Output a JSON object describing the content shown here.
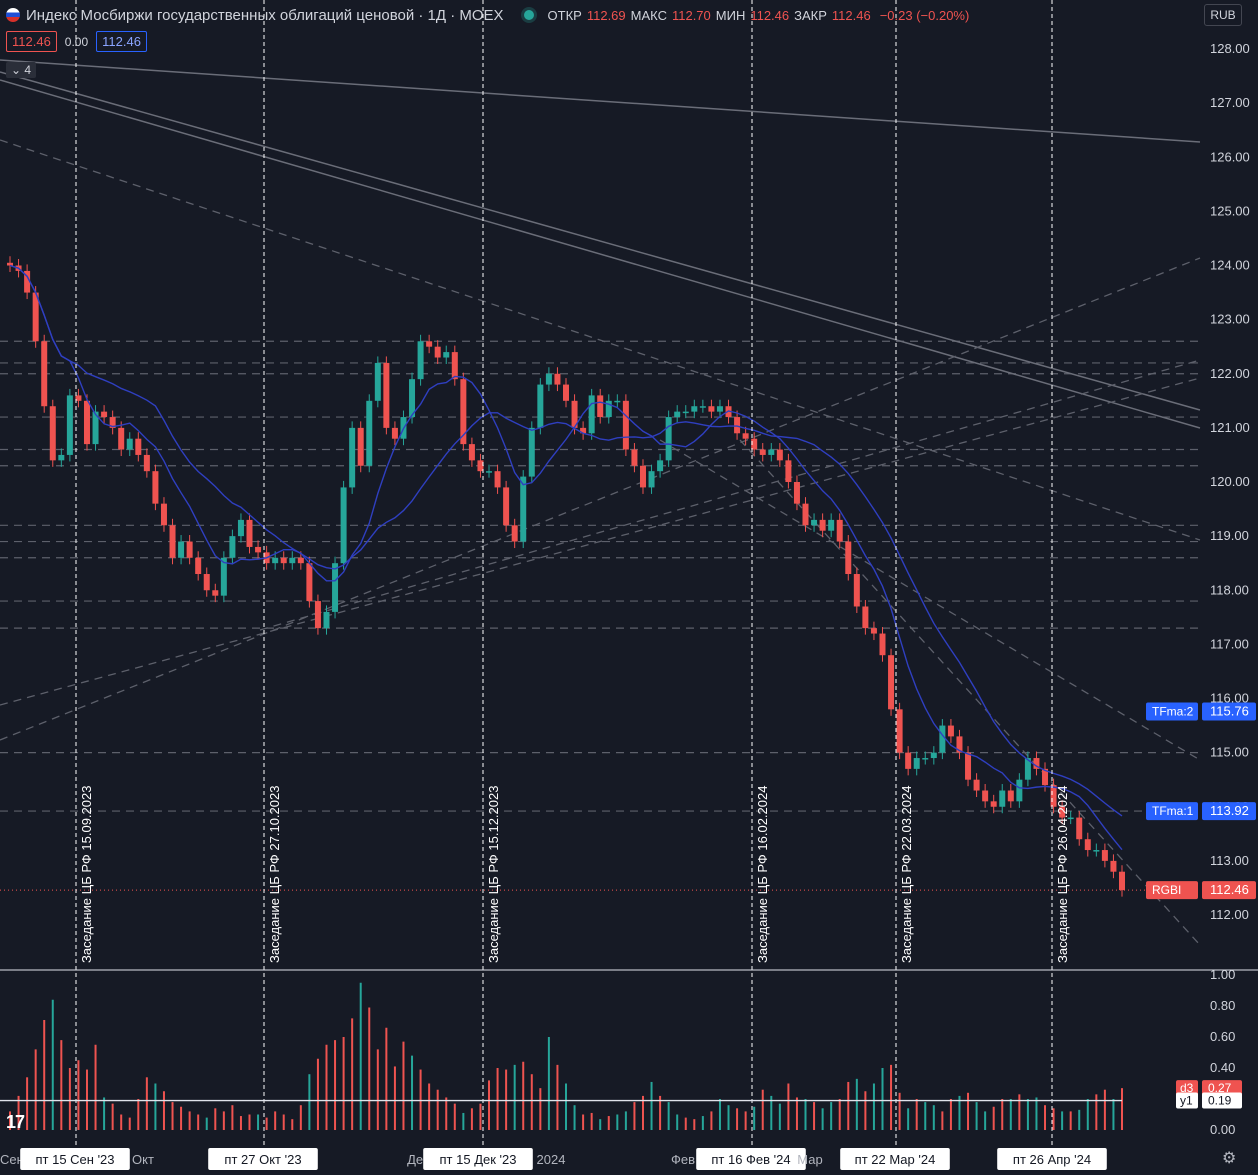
{
  "header": {
    "title": "Индекс Мосбиржи государственных облигаций ценовой · 1Д · MOEX",
    "ohlc": {
      "open_label": "ОТКР",
      "open": "112.69",
      "high_label": "МАКС",
      "high": "112.70",
      "low_label": "МИН",
      "low": "112.46",
      "close_label": "ЗАКР",
      "close": "112.46",
      "change": "−0.23 (−0.20%)"
    },
    "price_box": "112.46",
    "zero_value": "0.00",
    "ma_box": "112.46",
    "collapse_count": "4",
    "currency": "RUB"
  },
  "colors": {
    "background": "#161a25",
    "up": "#26a69a",
    "down": "#ef5350",
    "ma": "#2f3fc0",
    "grid_dash": "#5d606b"
  },
  "chart_data": [
    {
      "type": "candlestick",
      "title": "Индекс Мосбиржи государственных облигаций ценовой",
      "symbol": "RGBI",
      "timeframe": "1Д",
      "exchange": "MOEX",
      "ylim": [
        111.0,
        128.3
      ],
      "y_ticks": [
        "128.00",
        "127.00",
        "126.00",
        "125.00",
        "124.00",
        "123.00",
        "122.00",
        "121.00",
        "120.00",
        "119.00",
        "118.00",
        "117.00",
        "116.00",
        "115.00",
        "114.00",
        "113.00",
        "112.00"
      ],
      "x_labels": [
        "Сен",
        "пт 15 Сен '23",
        "Окт",
        "пт 27 Окт '23",
        "Дек",
        "пт 15 Дек '23",
        "2024",
        "Фев",
        "пт 16 Фев '24",
        "Мар",
        "пт 22 Мар '24",
        "пт 26 Апр '24"
      ],
      "closes": [
        124.0,
        123.9,
        123.5,
        122.6,
        121.4,
        120.4,
        120.5,
        121.6,
        121.5,
        120.7,
        121.3,
        121.2,
        121.0,
        120.6,
        120.8,
        120.5,
        120.2,
        119.6,
        119.2,
        118.6,
        118.9,
        118.6,
        118.3,
        118.0,
        117.9,
        118.6,
        119.0,
        119.3,
        118.8,
        118.7,
        118.5,
        118.6,
        118.5,
        118.6,
        118.5,
        117.8,
        117.3,
        117.6,
        118.5,
        119.9,
        121.0,
        120.3,
        121.5,
        122.2,
        121.0,
        120.8,
        121.2,
        121.9,
        122.6,
        122.5,
        122.3,
        122.4,
        121.9,
        120.7,
        120.4,
        120.2,
        120.2,
        119.9,
        119.2,
        118.9,
        120.1,
        121.0,
        121.8,
        122.0,
        121.8,
        121.5,
        121.0,
        120.9,
        121.6,
        121.2,
        121.5,
        121.5,
        120.6,
        120.3,
        119.9,
        120.2,
        120.4,
        121.2,
        121.3,
        121.3,
        121.4,
        121.4,
        121.3,
        121.4,
        121.2,
        120.9,
        120.8,
        120.6,
        120.5,
        120.6,
        120.4,
        120.0,
        119.6,
        119.2,
        119.3,
        119.1,
        119.3,
        118.9,
        118.3,
        117.7,
        117.3,
        117.2,
        116.8,
        115.8,
        115.0,
        114.7,
        114.9,
        114.9,
        115.0,
        115.5,
        115.3,
        115.0,
        114.5,
        114.3,
        114.1,
        114.0,
        114.3,
        114.1,
        114.5,
        114.9,
        114.7,
        114.4,
        114.0,
        113.8,
        113.8,
        113.4,
        113.2,
        113.2,
        113.0,
        112.8,
        112.46
      ],
      "series": [
        {
          "name": "TFma:1",
          "last_value": "113.92"
        },
        {
          "name": "TFma:2",
          "last_value": "115.76"
        }
      ],
      "last_price_label": {
        "name": "RGBI",
        "value": "112.46"
      },
      "horizontal_levels": [
        122.6,
        122.2,
        122.0,
        121.2,
        120.6,
        120.3,
        119.2,
        118.9,
        118.6,
        117.8,
        117.3,
        115.0,
        113.92
      ],
      "events": [
        {
          "label": "Заседание ЦБ РФ 15.09.2023"
        },
        {
          "label": "Заседание ЦБ РФ 27.10.2023"
        },
        {
          "label": "Заседание ЦБ РФ 15.12.2023"
        },
        {
          "label": "Заседание ЦБ РФ 16.02.2024"
        },
        {
          "label": "Заседание ЦБ РФ 22.03.2024"
        },
        {
          "label": "Заседание ЦБ РФ 26.04.2024"
        }
      ]
    },
    {
      "type": "bar",
      "ylim": [
        0,
        1.0
      ],
      "y_ticks": [
        "1.00",
        "0.80",
        "0.60",
        "0.40",
        "0.20",
        "0.00"
      ],
      "series": [
        {
          "name": "d3",
          "last_value": "0.27"
        },
        {
          "name": "y1",
          "last_value": "0.19"
        }
      ],
      "values": [
        0.12,
        0.22,
        0.34,
        0.52,
        0.71,
        0.84,
        0.58,
        0.4,
        0.45,
        0.39,
        0.55,
        0.21,
        0.17,
        0.1,
        0.08,
        0.2,
        0.34,
        0.3,
        0.25,
        0.18,
        0.15,
        0.12,
        0.1,
        0.08,
        0.14,
        0.12,
        0.16,
        0.09,
        0.1,
        0.1,
        0.08,
        0.12,
        0.1,
        0.07,
        0.16,
        0.36,
        0.46,
        0.55,
        0.58,
        0.6,
        0.72,
        0.95,
        0.79,
        0.52,
        0.66,
        0.41,
        0.57,
        0.48,
        0.39,
        0.3,
        0.26,
        0.21,
        0.17,
        0.11,
        0.14,
        0.17,
        0.32,
        0.4,
        0.39,
        0.42,
        0.44,
        0.36,
        0.27,
        0.6,
        0.42,
        0.3,
        0.16,
        0.1,
        0.11,
        0.07,
        0.09,
        0.1,
        0.12,
        0.18,
        0.22,
        0.31,
        0.22,
        0.18,
        0.1,
        0.08,
        0.07,
        0.09,
        0.12,
        0.2,
        0.16,
        0.14,
        0.12,
        0.15,
        0.26,
        0.22,
        0.17,
        0.3,
        0.21,
        0.2,
        0.18,
        0.14,
        0.18,
        0.2,
        0.31,
        0.33,
        0.25,
        0.3,
        0.4,
        0.42,
        0.24,
        0.14,
        0.2,
        0.18,
        0.16,
        0.12,
        0.2,
        0.22,
        0.24,
        0.18,
        0.12,
        0.15,
        0.2,
        0.2,
        0.23,
        0.2,
        0.21,
        0.16,
        0.14,
        0.12,
        0.12,
        0.13,
        0.2,
        0.23,
        0.26,
        0.2,
        0.27
      ],
      "baseline_y1": 0.19
    }
  ]
}
